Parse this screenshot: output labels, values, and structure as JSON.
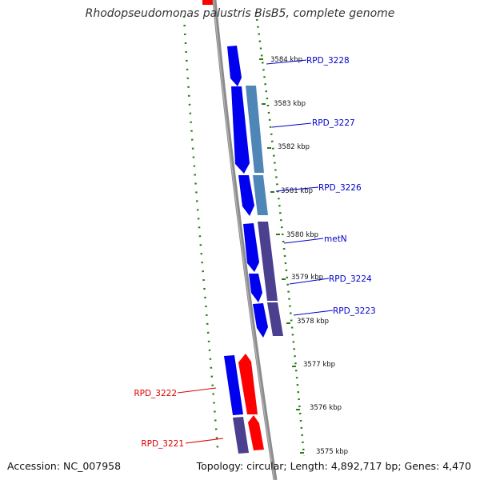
{
  "title": "Rhodopseudomonas palustris BisB5, complete genome",
  "footer": {
    "accession": "Accession: NC_007958",
    "summary": "Topology: circular; Length: 4,892,717 bp; Genes: 4,470"
  },
  "colors": {
    "background": "#ffffff",
    "backbone": "#8c8c8c",
    "tick": "#2a7a16",
    "cds_blue": "#0000ee",
    "cds_steelblue": "#4f86b8",
    "cds_slate": "#4b3f8f",
    "cds_red": "#ff0000",
    "label_blue": "#0000cc",
    "label_red": "#dd0000"
  },
  "scale_labels": [
    "3584 kbp",
    "3583 kbp",
    "3582 kbp",
    "3581 kbp",
    "3580 kbp",
    "3579 kbp",
    "3578 kbp",
    "3577 kbp",
    "3576 kbp",
    "3575 kbp"
  ],
  "gene_labels": [
    {
      "text": "RPD_3228",
      "strand": "plus"
    },
    {
      "text": "RPD_3227",
      "strand": "plus"
    },
    {
      "text": "RPD_3226",
      "strand": "plus"
    },
    {
      "text": "metN",
      "strand": "plus"
    },
    {
      "text": "RPD_3224",
      "strand": "plus"
    },
    {
      "text": "RPD_3223",
      "strand": "plus"
    },
    {
      "text": "RPD_3222",
      "strand": "minus"
    },
    {
      "text": "RPD_3221",
      "strand": "minus"
    }
  ],
  "features": [
    {
      "name": "RPD_3228",
      "ring": "cds-outer",
      "color": "cds_blue",
      "direction": "down"
    },
    {
      "name": "RPD_3227",
      "ring": "cds-outer",
      "color": "cds_blue",
      "direction": "down"
    },
    {
      "name": "RPD_3227",
      "ring": "cog",
      "color": "cds_steelblue",
      "direction": "none"
    },
    {
      "name": "RPD_3226",
      "ring": "cds-outer",
      "color": "cds_blue",
      "direction": "down"
    },
    {
      "name": "RPD_3226",
      "ring": "cog",
      "color": "cds_steelblue",
      "direction": "none"
    },
    {
      "name": "metN",
      "ring": "cds-outer",
      "color": "cds_blue",
      "direction": "down"
    },
    {
      "name": "metN",
      "ring": "cog",
      "color": "cds_slate",
      "direction": "none"
    },
    {
      "name": "RPD_3224",
      "ring": "cds-outer",
      "color": "cds_blue",
      "direction": "down"
    },
    {
      "name": "RPD_3224",
      "ring": "cog",
      "color": "cds_slate",
      "direction": "none"
    },
    {
      "name": "RPD_3223",
      "ring": "cds-outer",
      "color": "cds_blue",
      "direction": "down"
    },
    {
      "name": "RPD_3223",
      "ring": "cog",
      "color": "cds_slate",
      "direction": "none"
    },
    {
      "name": "RPD_3222",
      "ring": "cds-outer",
      "color": "cds_blue",
      "direction": "none"
    },
    {
      "name": "RPD_3222",
      "ring": "cds-inner",
      "color": "cds_red",
      "direction": "up"
    },
    {
      "name": "RPD_3221",
      "ring": "cog",
      "color": "cds_slate",
      "direction": "none"
    },
    {
      "name": "RPD_3221",
      "ring": "cds-inner",
      "color": "cds_red",
      "direction": "up"
    }
  ]
}
